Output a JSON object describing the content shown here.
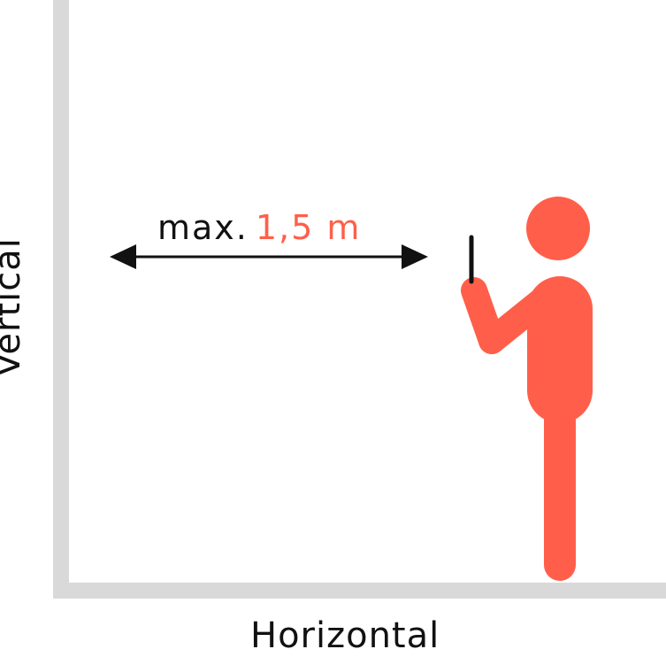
{
  "labels": {
    "horizontal": "Horizontal",
    "vertical": "Vertical",
    "distance_prefix": "max.",
    "distance_value": "1,5 m"
  },
  "colors": {
    "axis": "#d9d9d9",
    "accent": "#ff5f4a",
    "text": "#111111",
    "arrow": "#111111",
    "device": "#111111"
  },
  "icons": {
    "person": "person-with-phone-icon",
    "arrow": "double-headed-arrow-icon"
  }
}
